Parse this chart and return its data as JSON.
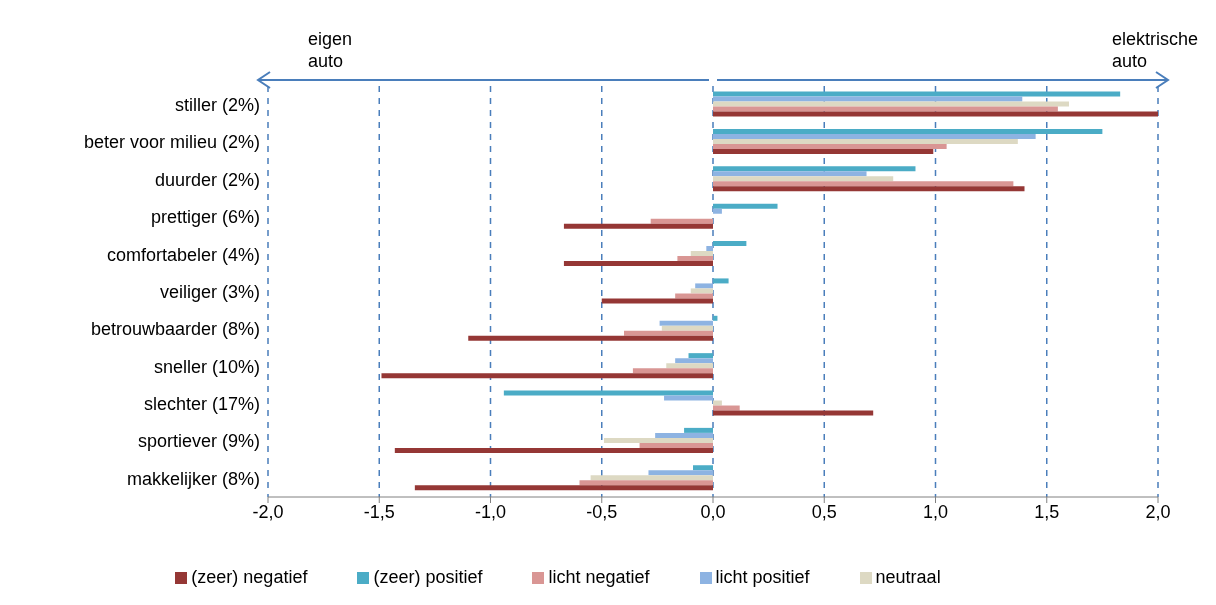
{
  "chart_data": {
    "type": "bar",
    "orientation": "horizontal",
    "categories": [
      "stiller (2%)",
      "beter voor milieu (2%)",
      "duurder (2%)",
      "prettiger (6%)",
      "comfortabeler (4%)",
      "veiliger (3%)",
      "betrouwbaarder (8%)",
      "sneller (10%)",
      "slechter (17%)",
      "sportiever (9%)",
      "makkelijker (8%)"
    ],
    "series": [
      {
        "name": "(zeer) positief",
        "color": "#4bacc6",
        "values": [
          1.83,
          1.75,
          0.91,
          0.29,
          0.15,
          0.07,
          0.02,
          -0.11,
          -0.94,
          -0.13,
          -0.09
        ]
      },
      {
        "name": "licht positief",
        "color": "#8db3e2",
        "values": [
          1.39,
          1.45,
          0.69,
          0.04,
          -0.03,
          -0.08,
          -0.24,
          -0.17,
          -0.22,
          -0.26,
          -0.29
        ]
      },
      {
        "name": "neutraal",
        "color": "#ddd9c3",
        "values": [
          1.6,
          1.37,
          0.81,
          0,
          -0.1,
          -0.1,
          -0.23,
          -0.21,
          0.04,
          -0.49,
          -0.55
        ]
      },
      {
        "name": "licht negatief",
        "color": "#d99694",
        "values": [
          1.55,
          1.05,
          1.35,
          -0.28,
          -0.16,
          -0.17,
          -0.4,
          -0.36,
          0.12,
          -0.33,
          -0.6
        ]
      },
      {
        "name": "(zeer) negatief",
        "color": "#953735",
        "values": [
          2.0,
          0.99,
          1.4,
          -0.67,
          -0.67,
          -0.5,
          -1.1,
          -1.49,
          0.72,
          -1.43,
          -1.34
        ]
      }
    ],
    "xlim": [
      -2,
      2
    ],
    "xticks": [
      {
        "value": -2,
        "label": "-2,0"
      },
      {
        "value": -1.5,
        "label": "-1,5"
      },
      {
        "value": -1,
        "label": "-1,0"
      },
      {
        "value": -0.5,
        "label": "-0,5"
      },
      {
        "value": 0,
        "label": "0,0"
      },
      {
        "value": 0.5,
        "label": "0,5"
      },
      {
        "value": 1,
        "label": "1,0"
      },
      {
        "value": 1.5,
        "label": "1,5"
      },
      {
        "value": 2,
        "label": "2,0"
      }
    ],
    "grid": "x",
    "legend": "bottom",
    "annotations": [
      "eigen\nauto",
      "elektrische\nauto"
    ]
  }
}
